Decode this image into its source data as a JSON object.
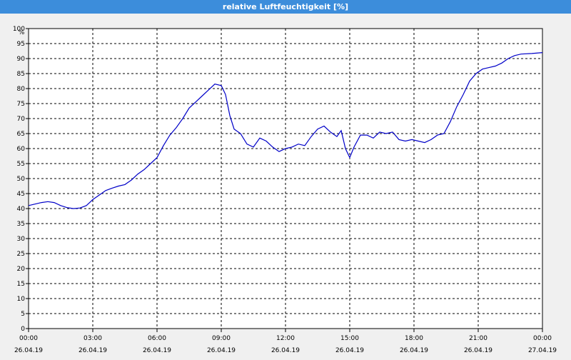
{
  "window": {
    "title": "relative Luftfeuchtigkeit [%]"
  },
  "chart_data": {
    "type": "line",
    "title": "relative Luftfeuchtigkeit [%]",
    "ylabel": "%",
    "xlabel": "",
    "ylim": [
      0,
      100
    ],
    "y_ticks": [
      0,
      5,
      10,
      15,
      20,
      25,
      30,
      35,
      40,
      45,
      50,
      55,
      60,
      65,
      70,
      75,
      80,
      85,
      90,
      95,
      100
    ],
    "x_range_hours": [
      0,
      24
    ],
    "x_ticks": [
      {
        "hour": 0,
        "time": "00:00",
        "date": "26.04.19"
      },
      {
        "hour": 3,
        "time": "03:00",
        "date": "26.04.19"
      },
      {
        "hour": 6,
        "time": "06:00",
        "date": "26.04.19"
      },
      {
        "hour": 9,
        "time": "09:00",
        "date": "26.04.19"
      },
      {
        "hour": 12,
        "time": "12:00",
        "date": "26.04.19"
      },
      {
        "hour": 15,
        "time": "15:00",
        "date": "26.04.19"
      },
      {
        "hour": 18,
        "time": "18:00",
        "date": "26.04.19"
      },
      {
        "hour": 21,
        "time": "21:00",
        "date": "26.04.19"
      },
      {
        "hour": 24,
        "time": "00:00",
        "date": "27.04.19"
      }
    ],
    "grid": true,
    "series": [
      {
        "color": "#0000c8",
        "points": [
          [
            0.0,
            41.0
          ],
          [
            0.3,
            41.5
          ],
          [
            0.6,
            42.0
          ],
          [
            0.9,
            42.3
          ],
          [
            1.2,
            42.0
          ],
          [
            1.5,
            41.0
          ],
          [
            1.8,
            40.3
          ],
          [
            2.1,
            40.0
          ],
          [
            2.4,
            40.2
          ],
          [
            2.7,
            41.0
          ],
          [
            3.0,
            43.0
          ],
          [
            3.3,
            44.5
          ],
          [
            3.6,
            46.0
          ],
          [
            3.9,
            46.8
          ],
          [
            4.2,
            47.5
          ],
          [
            4.5,
            48.0
          ],
          [
            4.8,
            49.5
          ],
          [
            5.1,
            51.5
          ],
          [
            5.4,
            53.0
          ],
          [
            5.7,
            55.0
          ],
          [
            6.0,
            57.0
          ],
          [
            6.3,
            61.0
          ],
          [
            6.6,
            64.5
          ],
          [
            6.9,
            67.0
          ],
          [
            7.2,
            70.0
          ],
          [
            7.5,
            73.5
          ],
          [
            7.8,
            75.5
          ],
          [
            8.1,
            77.5
          ],
          [
            8.4,
            79.5
          ],
          [
            8.7,
            81.5
          ],
          [
            9.0,
            81.0
          ],
          [
            9.2,
            78.0
          ],
          [
            9.4,
            71.0
          ],
          [
            9.6,
            66.5
          ],
          [
            9.9,
            65.0
          ],
          [
            10.2,
            61.5
          ],
          [
            10.5,
            60.5
          ],
          [
            10.8,
            63.5
          ],
          [
            11.1,
            62.5
          ],
          [
            11.4,
            60.5
          ],
          [
            11.7,
            59.0
          ],
          [
            12.0,
            60.0
          ],
          [
            12.3,
            60.5
          ],
          [
            12.6,
            61.5
          ],
          [
            12.9,
            61.0
          ],
          [
            13.2,
            64.0
          ],
          [
            13.5,
            66.5
          ],
          [
            13.8,
            67.5
          ],
          [
            14.1,
            65.5
          ],
          [
            14.4,
            64.0
          ],
          [
            14.6,
            66.0
          ],
          [
            14.8,
            60.0
          ],
          [
            15.0,
            57.0
          ],
          [
            15.2,
            60.5
          ],
          [
            15.5,
            64.5
          ],
          [
            15.8,
            64.5
          ],
          [
            16.1,
            63.5
          ],
          [
            16.4,
            65.5
          ],
          [
            16.7,
            65.0
          ],
          [
            17.0,
            65.5
          ],
          [
            17.3,
            63.0
          ],
          [
            17.6,
            62.5
          ],
          [
            17.9,
            63.0
          ],
          [
            18.2,
            62.5
          ],
          [
            18.5,
            62.0
          ],
          [
            18.8,
            63.0
          ],
          [
            19.1,
            64.5
          ],
          [
            19.4,
            65.0
          ],
          [
            19.7,
            69.0
          ],
          [
            20.0,
            74.0
          ],
          [
            20.3,
            78.0
          ],
          [
            20.6,
            82.5
          ],
          [
            20.9,
            85.0
          ],
          [
            21.2,
            86.5
          ],
          [
            21.5,
            87.0
          ],
          [
            21.8,
            87.5
          ],
          [
            22.1,
            88.5
          ],
          [
            22.4,
            90.0
          ],
          [
            22.7,
            91.0
          ],
          [
            23.0,
            91.5
          ],
          [
            23.5,
            91.7
          ],
          [
            24.0,
            92.0
          ]
        ]
      }
    ]
  }
}
